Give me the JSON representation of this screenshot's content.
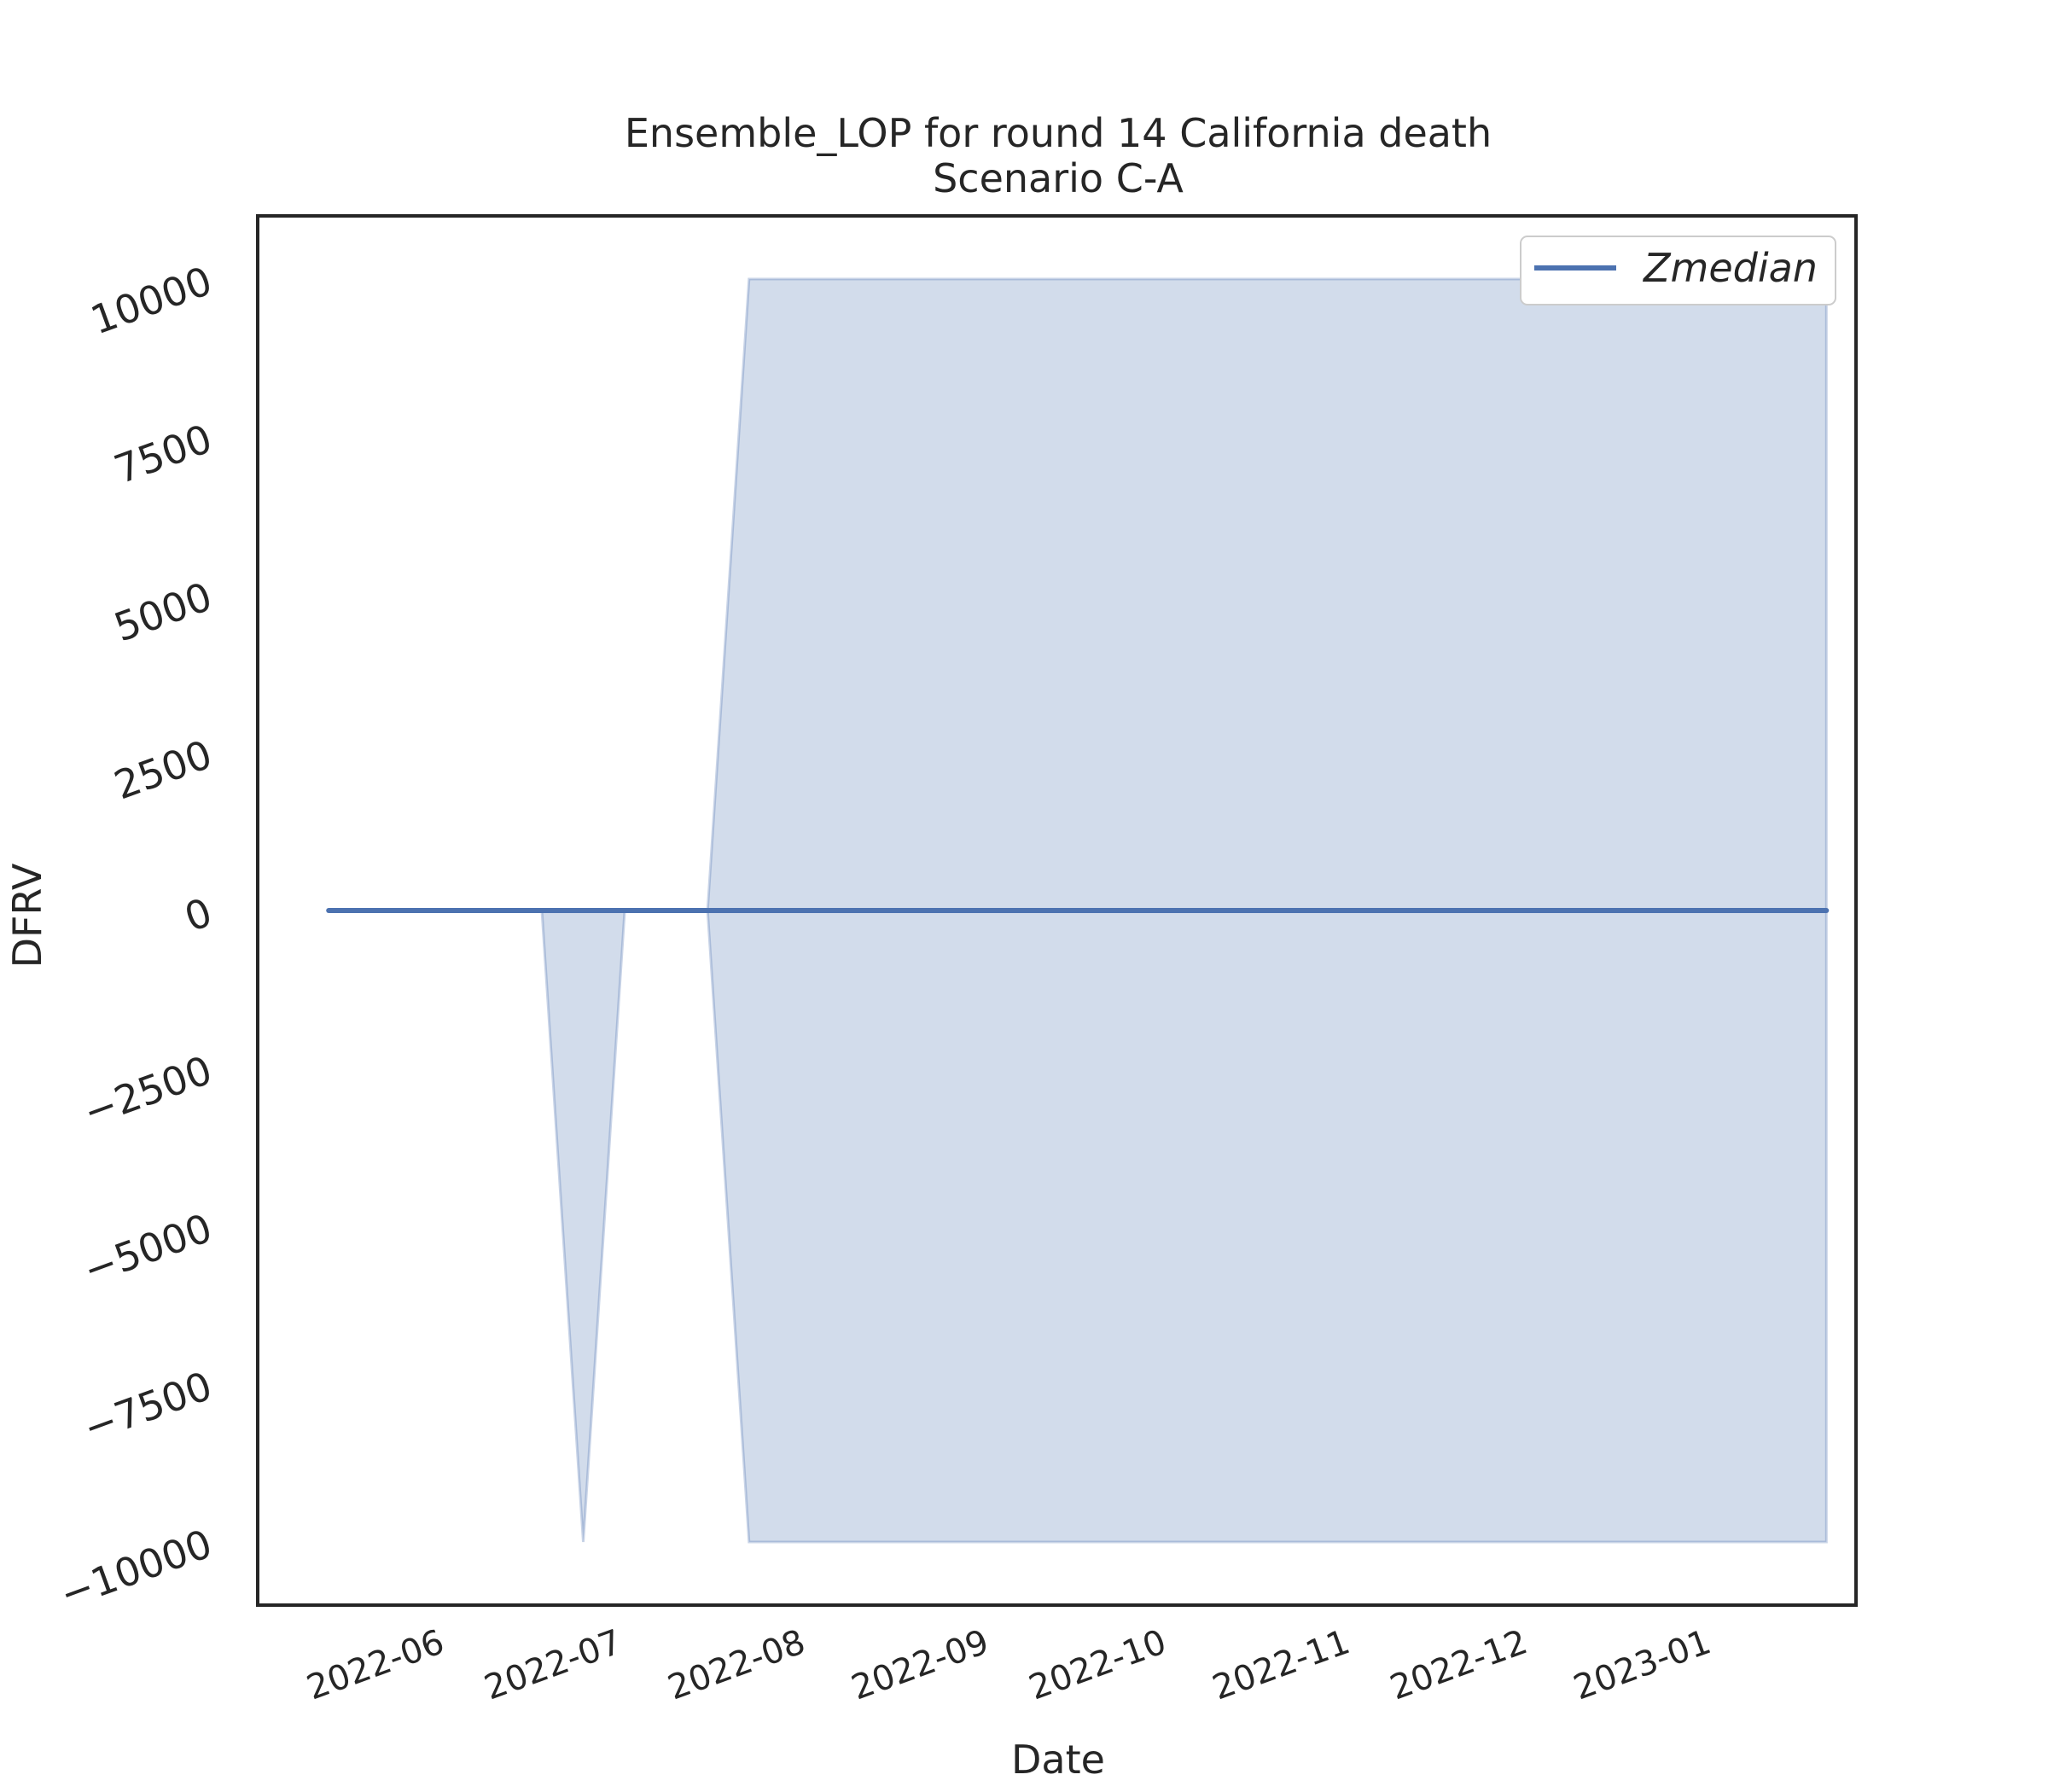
{
  "chart_data": {
    "type": "area",
    "title": "Ensemble_LOP for round 14 California death",
    "subtitle": "Scenario C-A",
    "xlabel": "Date",
    "ylabel": "DFRV",
    "ylim": [
      -11000,
      11000
    ],
    "xlim": [
      "2022-05-01",
      "2023-01-26"
    ],
    "yticks": [
      -10000,
      -7500,
      -5000,
      -2500,
      0,
      2500,
      5000,
      7500,
      10000
    ],
    "ytick_labels": [
      "−10000",
      "−7500",
      "−5000",
      "−2500",
      "0",
      "2500",
      "5000",
      "7500",
      "10000"
    ],
    "xticks": [
      "2022-06-01",
      "2022-07-01",
      "2022-08-01",
      "2022-09-01",
      "2022-10-01",
      "2022-11-01",
      "2022-12-01",
      "2023-01-01"
    ],
    "xtick_labels": [
      "2022-06",
      "2022-07",
      "2022-08",
      "2022-09",
      "2022-10",
      "2022-11",
      "2022-12",
      "2023-01"
    ],
    "grid": false,
    "legend_position": "top-right",
    "series": [
      {
        "name": "Zmedian",
        "kind": "line",
        "color": "#4c72b0",
        "x": [
          "2022-05-13",
          "2022-06-18",
          "2022-06-25",
          "2022-07-02",
          "2022-07-16",
          "2022-07-23",
          "2023-01-21"
        ],
        "values": [
          0,
          0,
          0,
          0,
          0,
          0,
          0
        ]
      }
    ],
    "band": {
      "color": "#4c72b0",
      "opacity": 0.25,
      "x": [
        "2022-05-13",
        "2022-06-18",
        "2022-06-25",
        "2022-07-02",
        "2022-07-16",
        "2022-07-23",
        "2023-01-21"
      ],
      "upper": [
        0,
        0,
        0,
        0,
        0,
        10000,
        10000
      ],
      "lower": [
        0,
        0,
        -10000,
        0,
        0,
        -10000,
        -10000
      ]
    }
  }
}
